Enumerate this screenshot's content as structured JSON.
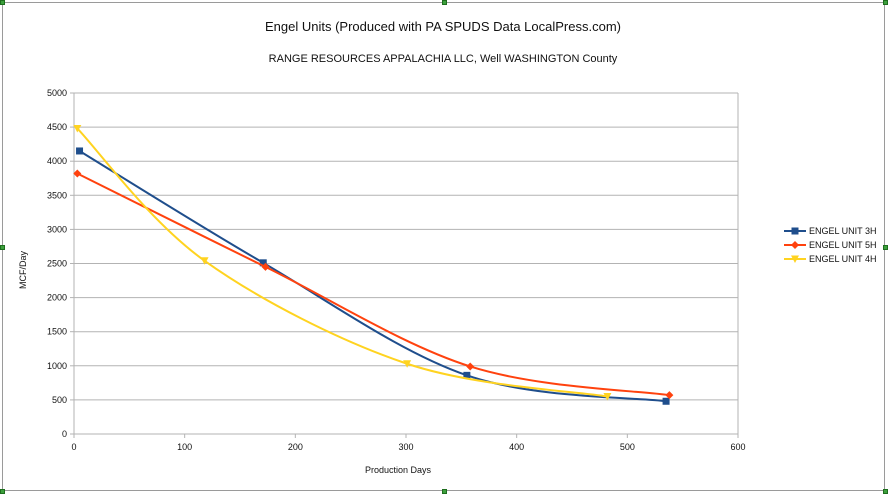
{
  "chart_data": {
    "type": "line",
    "title": "Engel Units (Produced with PA SPUDS Data LocalPress.com)",
    "subtitle": "RANGE RESOURCES APPALACHIA LLC, Well  WASHINGTON County",
    "xlabel": "Production Days",
    "ylabel": "MCF/Day",
    "xlim": [
      0,
      600
    ],
    "ylim": [
      0,
      5000
    ],
    "x_ticks": [
      0,
      100,
      200,
      300,
      400,
      500,
      600
    ],
    "y_ticks": [
      0,
      500,
      1000,
      1500,
      2000,
      2500,
      3000,
      3500,
      4000,
      4500,
      5000
    ],
    "grid": "horizontal",
    "legend": "right",
    "series": [
      {
        "name": "ENGEL UNIT 3H",
        "color": "#1f4e8c",
        "marker": "square",
        "points": [
          [
            5,
            4150
          ],
          [
            171,
            2510
          ],
          [
            355,
            860
          ],
          [
            535,
            480
          ]
        ]
      },
      {
        "name": "ENGEL UNIT 5H",
        "color": "#ff420e",
        "marker": "diamond",
        "points": [
          [
            3,
            3820
          ],
          [
            173,
            2450
          ],
          [
            358,
            990
          ],
          [
            538,
            570
          ]
        ]
      },
      {
        "name": "ENGEL UNIT 4H",
        "color": "#ffd320",
        "marker": "triangle-down",
        "points": [
          [
            3,
            4480
          ],
          [
            118,
            2540
          ],
          [
            301,
            1030
          ],
          [
            482,
            550
          ]
        ]
      }
    ]
  }
}
